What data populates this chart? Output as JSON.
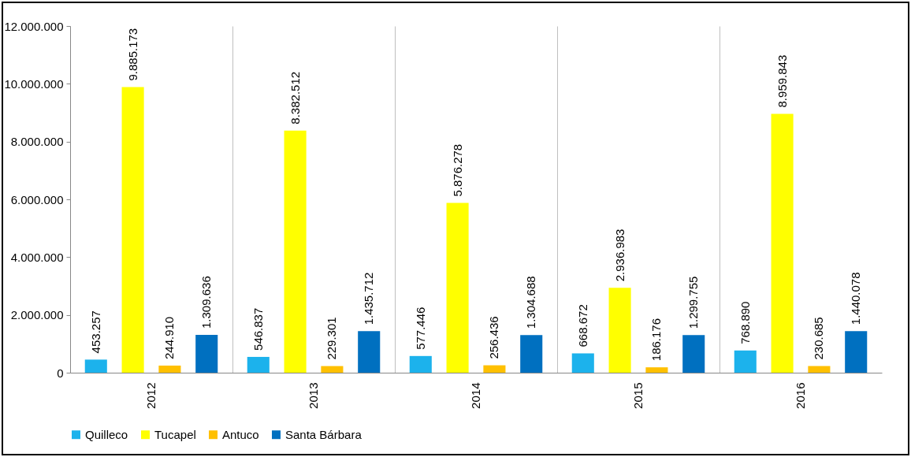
{
  "chart_data": {
    "type": "bar",
    "categories": [
      "2012",
      "2013",
      "2014",
      "2015",
      "2016"
    ],
    "series": [
      {
        "name": "Quilleco",
        "color": "#1cb2ec",
        "values": [
          453257,
          546837,
          577446,
          668672,
          768890
        ],
        "value_labels": [
          "453.257",
          "546.837",
          "577.446",
          "668.672",
          "768.890"
        ]
      },
      {
        "name": "Tucapel",
        "color": "#ffff00",
        "values": [
          9885173,
          8382512,
          5876278,
          2936983,
          8959843
        ],
        "value_labels": [
          "9.885.173",
          "8.382.512",
          "5.876.278",
          "2.936.983",
          "8.959.843"
        ]
      },
      {
        "name": "Antuco",
        "color": "#ffc000",
        "values": [
          244910,
          229301,
          256436,
          186176,
          230685
        ],
        "value_labels": [
          "244.910",
          "229.301",
          "256.436",
          "186.176",
          "230.685"
        ]
      },
      {
        "name": "Santa Bárbara",
        "color": "#0070c0",
        "values": [
          1309636,
          1435712,
          1304688,
          1299755,
          1440078
        ],
        "value_labels": [
          "1.309.636",
          "1.435.712",
          "1.304.688",
          "1.299.755",
          "1.440.078"
        ]
      }
    ],
    "ylim": [
      0,
      12000000
    ],
    "yticks": [
      0,
      {
        "value": 2000000,
        "label": "2.000.000"
      },
      {
        "value": 4000000,
        "label": "4.000.000"
      },
      {
        "value": 6000000,
        "label": "6.000.000"
      },
      {
        "value": 8000000,
        "label": "8.000.000"
      },
      {
        "value": 10000000,
        "label": "10.000.000"
      },
      {
        "value": 12000000,
        "label": "12.000.000"
      }
    ],
    "grid": "x",
    "legend": "bottom"
  }
}
